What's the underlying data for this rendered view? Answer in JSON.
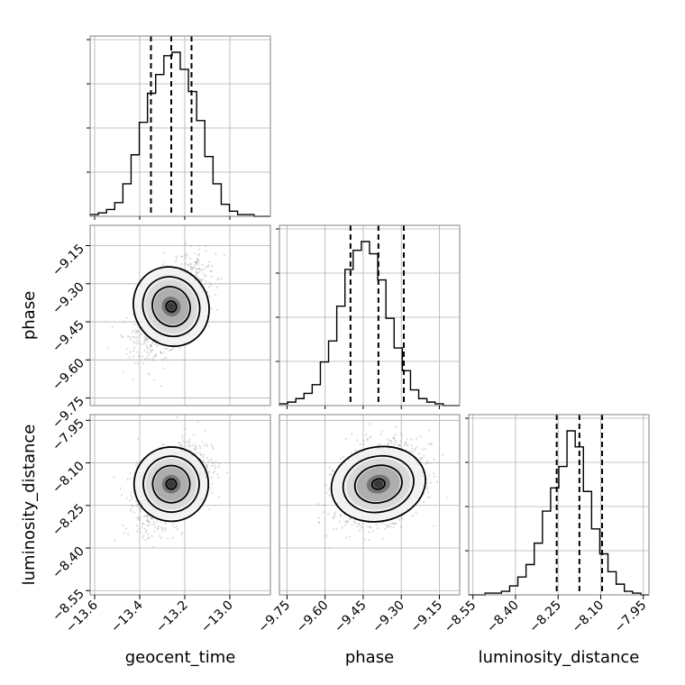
{
  "chart_data": {
    "type": "corner",
    "parameters": [
      "geocent_time",
      "phase",
      "luminosity_distance"
    ],
    "ticks": {
      "geocent_time": [
        "−13.6",
        "−13.4",
        "−13.2",
        "−13.0"
      ],
      "phase": [
        "−9.75",
        "−9.60",
        "−9.45",
        "−9.30",
        "−9.15"
      ],
      "luminosity_distance": [
        "−8.55",
        "−8.40",
        "−8.25",
        "−8.10",
        "−7.95"
      ]
    },
    "ranges": {
      "geocent_time": [
        -13.62,
        -12.82
      ],
      "phase": [
        -9.78,
        -9.07
      ],
      "luminosity_distance": [
        -8.565,
        -7.93
      ]
    },
    "quantiles": {
      "geocent_time": [
        -13.35,
        -13.26,
        -13.17
      ],
      "phase": [
        -9.5,
        -9.39,
        -9.29
      ],
      "luminosity_distance": [
        -8.255,
        -8.175,
        -8.095
      ]
    },
    "histograms": {
      "geocent_time": [
        1,
        2,
        4,
        8,
        19,
        36,
        55,
        72,
        83,
        94,
        96,
        86,
        73,
        56,
        35,
        19,
        7,
        3,
        1,
        1,
        0,
        0
      ],
      "phase": [
        1,
        2,
        4,
        7,
        12,
        25,
        37,
        57,
        78,
        89,
        94,
        87,
        72,
        50,
        33,
        20,
        9,
        4,
        2,
        1,
        0,
        0
      ],
      "luminosity_distance": [
        0,
        0,
        1,
        1,
        2,
        5,
        10,
        17,
        29,
        47,
        60,
        72,
        92,
        83,
        58,
        37,
        23,
        13,
        6,
        2,
        1,
        0
      ]
    },
    "pair_stats": {
      "phase_vs_geocent_time": {
        "mean_x": -13.26,
        "mean_y": -9.39,
        "sd_x": 0.075,
        "sd_y": 0.085,
        "corr": 0.55
      },
      "luminosity_distance_vs_geocent_time": {
        "mean_x": -13.26,
        "mean_y": -8.175,
        "sd_x": 0.075,
        "sd_y": 0.07,
        "corr": 0.45
      },
      "luminosity_distance_vs_phase": {
        "mean_x": -9.39,
        "mean_y": -8.175,
        "sd_x": 0.085,
        "sd_y": 0.07,
        "corr": 0.3
      }
    }
  }
}
